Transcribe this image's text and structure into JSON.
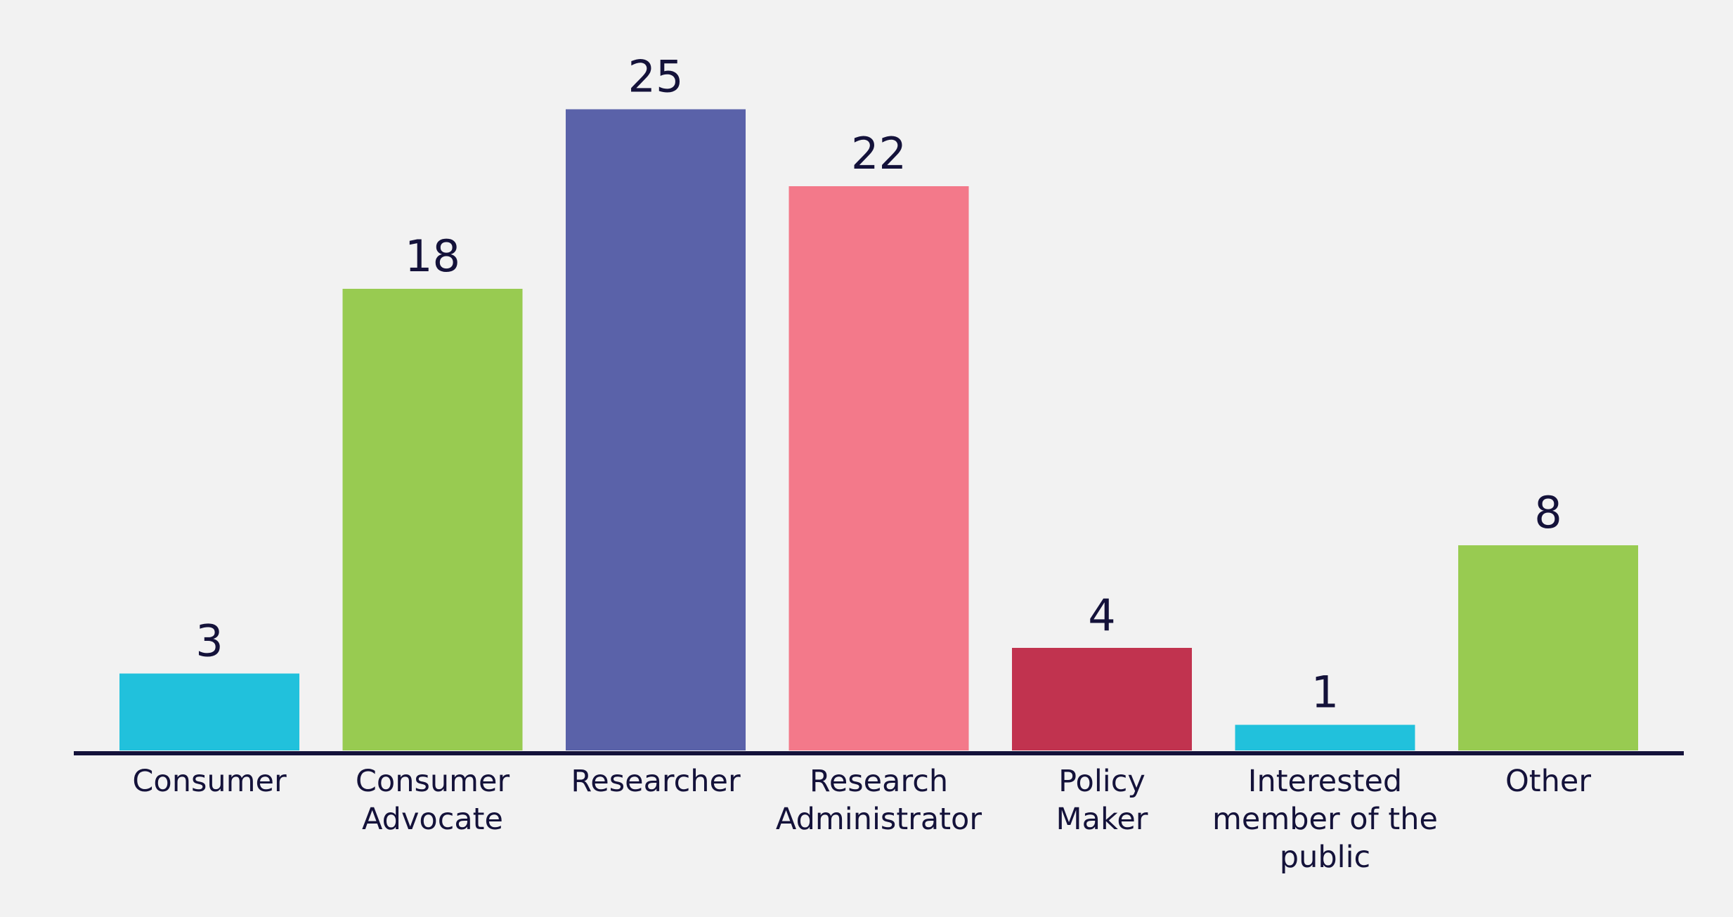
{
  "chart_data": {
    "type": "bar",
    "title": "",
    "xlabel": "",
    "ylabel": "",
    "ylim": [
      0,
      25
    ],
    "grid": false,
    "legend": "none",
    "categories": [
      [
        "Consumer"
      ],
      [
        "Consumer",
        "Advocate"
      ],
      [
        "Researcher"
      ],
      [
        "Research",
        "Administrator"
      ],
      [
        "Policy",
        "Maker"
      ],
      [
        "Interested",
        "member of the",
        "public"
      ],
      [
        "Other"
      ]
    ],
    "values": [
      3,
      18,
      25,
      22,
      4,
      1,
      8
    ],
    "value_labels": [
      "3",
      "18",
      "25",
      "22",
      "4",
      "1",
      "8"
    ],
    "colors": [
      "#21c1dc",
      "#98cb51",
      "#5a62a9",
      "#f3798a",
      "#c1334f",
      "#21c1dc",
      "#98cb51"
    ],
    "axis_color": "#14123a",
    "text_color": "#14123a",
    "background": "#f2f2f2"
  }
}
